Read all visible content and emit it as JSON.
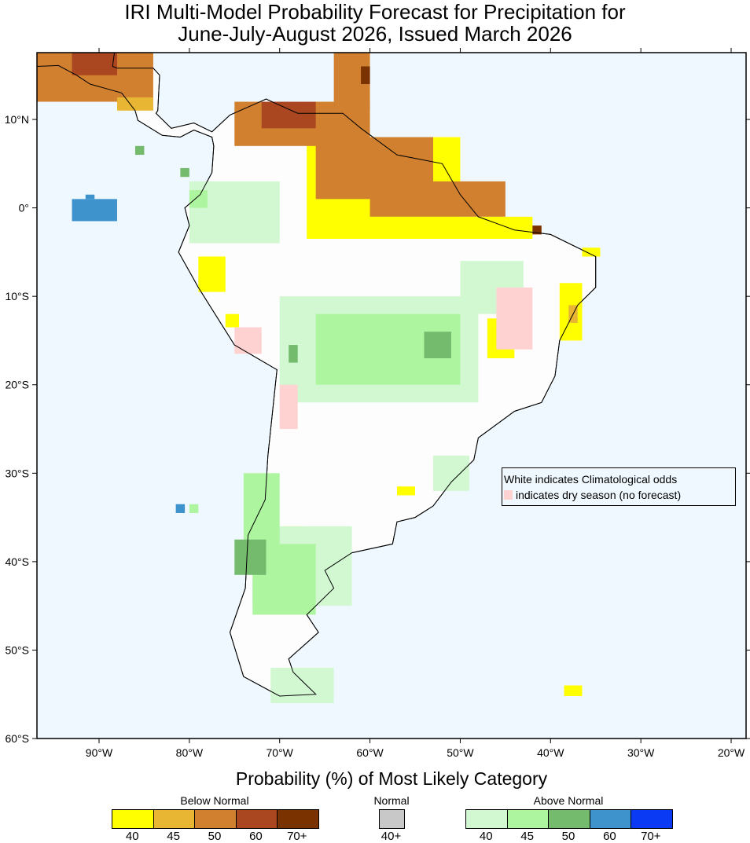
{
  "title_line1": "IRI Multi-Model Probability Forecast for Precipitation for",
  "title_line2": "June-July-August 2026, Issued March 2026",
  "subtitle": "Probability (%) of Most Likely Category",
  "note": {
    "line1": "White indicates Climatological odds",
    "line2": "indicates dry season (no forecast)"
  },
  "axes": {
    "lon_labels": [
      {
        "lon": -90,
        "text": "90°W"
      },
      {
        "lon": -80,
        "text": "80°W"
      },
      {
        "lon": -70,
        "text": "70°W"
      },
      {
        "lon": -60,
        "text": "60°W"
      },
      {
        "lon": -50,
        "text": "50°W"
      },
      {
        "lon": -40,
        "text": "40°W"
      },
      {
        "lon": -30,
        "text": "30°W"
      },
      {
        "lon": -20,
        "text": "20°W"
      }
    ],
    "lat_labels": [
      {
        "lat": 10,
        "text": "10°N"
      },
      {
        "lat": 0,
        "text": "0°"
      },
      {
        "lat": -10,
        "text": "10°S"
      },
      {
        "lat": -20,
        "text": "20°S"
      },
      {
        "lat": -30,
        "text": "30°S"
      },
      {
        "lat": -40,
        "text": "40°S"
      },
      {
        "lat": -50,
        "text": "50°S"
      },
      {
        "lat": -60,
        "text": "60°S"
      }
    ],
    "lon_range": [
      -97,
      -18.4
    ],
    "lat_range": [
      -60,
      17.5
    ]
  },
  "legend": {
    "below": {
      "label": "Below Normal",
      "ticks": [
        "40",
        "45",
        "50",
        "60",
        "70+"
      ],
      "colors": [
        "#ffff00",
        "#e8b632",
        "#d0802f",
        "#ab4720",
        "#7a3300"
      ]
    },
    "normal": {
      "label": "Normal",
      "ticks": [
        "40+"
      ],
      "colors": [
        "#c8c8c8"
      ]
    },
    "above": {
      "label": "Above Normal",
      "ticks": [
        "40",
        "45",
        "50",
        "60",
        "70+"
      ],
      "colors": [
        "#d2f8d2",
        "#aef5a0",
        "#74bb6e",
        "#3e93cc",
        "#0b3af5"
      ]
    },
    "dry": "#ffd2d2",
    "ocean": "#f0f8ff"
  },
  "regions": [
    {
      "lon": [
        -97,
        -84
      ],
      "lat": [
        12,
        17.5
      ],
      "cat": "below",
      "level": 2
    },
    {
      "lon": [
        -93,
        -88
      ],
      "lat": [
        15,
        17.5
      ],
      "cat": "below",
      "level": 3
    },
    {
      "lon": [
        -88,
        -84
      ],
      "lat": [
        11,
        12.5
      ],
      "cat": "below",
      "level": 1
    },
    {
      "lon": [
        -64,
        -60
      ],
      "lat": [
        11,
        17.5
      ],
      "cat": "below",
      "level": 2
    },
    {
      "lon": [
        -61,
        -60
      ],
      "lat": [
        14,
        16
      ],
      "cat": "below",
      "level": 4
    },
    {
      "lon": [
        -67,
        -50
      ],
      "lat": [
        -3.5,
        8
      ],
      "cat": "below",
      "level": 0
    },
    {
      "lon": [
        -75,
        -60
      ],
      "lat": [
        7,
        12
      ],
      "cat": "below",
      "level": 2
    },
    {
      "lon": [
        -72,
        -66
      ],
      "lat": [
        9,
        12
      ],
      "cat": "below",
      "level": 3
    },
    {
      "lon": [
        -66,
        -53
      ],
      "lat": [
        1,
        8
      ],
      "cat": "below",
      "level": 2
    },
    {
      "lon": [
        -60,
        -45
      ],
      "lat": [
        -1,
        3
      ],
      "cat": "below",
      "level": 2
    },
    {
      "lon": [
        -62,
        -42
      ],
      "lat": [
        -3.5,
        -1
      ],
      "cat": "below",
      "level": 0
    },
    {
      "lon": [
        -42,
        -41
      ],
      "lat": [
        -3,
        -2
      ],
      "cat": "below",
      "level": 4
    },
    {
      "lon": [
        -79,
        -76
      ],
      "lat": [
        -9.5,
        -5.5
      ],
      "cat": "below",
      "level": 0
    },
    {
      "lon": [
        -76,
        -74.5
      ],
      "lat": [
        -13.5,
        -12
      ],
      "cat": "below",
      "level": 0
    },
    {
      "lon": [
        -39,
        -36.5
      ],
      "lat": [
        -15,
        -8.5
      ],
      "cat": "below",
      "level": 0
    },
    {
      "lon": [
        -38,
        -37
      ],
      "lat": [
        -13,
        -11
      ],
      "cat": "below",
      "level": 1
    },
    {
      "lon": [
        -47,
        -44
      ],
      "lat": [
        -17,
        -12.5
      ],
      "cat": "below",
      "level": 0
    },
    {
      "lon": [
        -46,
        -45
      ],
      "lat": [
        -16,
        -13
      ],
      "cat": "below",
      "level": 1
    },
    {
      "lon": [
        -36.5,
        -34.5
      ],
      "lat": [
        -5.5,
        -4.5
      ],
      "cat": "below",
      "level": 0
    },
    {
      "lon": [
        -69.5,
        -67.5
      ],
      "lat": [
        -38,
        -36
      ],
      "cat": "below",
      "level": 0
    },
    {
      "lon": [
        -57,
        -55
      ],
      "lat": [
        -32.5,
        -31.5
      ],
      "cat": "below",
      "level": 0
    },
    {
      "lon": [
        -38.5,
        -36.5
      ],
      "lat": [
        -55.2,
        -54
      ],
      "cat": "below",
      "level": 0
    },
    {
      "lon": [
        -80,
        -70
      ],
      "lat": [
        -4,
        3
      ],
      "cat": "above",
      "level": 0
    },
    {
      "lon": [
        -80,
        -78
      ],
      "lat": [
        0,
        2
      ],
      "cat": "above",
      "level": 1
    },
    {
      "lon": [
        -70,
        -48
      ],
      "lat": [
        -22,
        -10
      ],
      "cat": "above",
      "level": 0
    },
    {
      "lon": [
        -66,
        -50
      ],
      "lat": [
        -20,
        -12
      ],
      "cat": "above",
      "level": 1
    },
    {
      "lon": [
        -54,
        -51
      ],
      "lat": [
        -17,
        -14
      ],
      "cat": "above",
      "level": 2
    },
    {
      "lon": [
        -69,
        -68
      ],
      "lat": [
        -17.5,
        -15.5
      ],
      "cat": "above",
      "level": 2
    },
    {
      "lon": [
        -50,
        -43
      ],
      "lat": [
        -12,
        -6
      ],
      "cat": "above",
      "level": 0
    },
    {
      "lon": [
        -73,
        -62
      ],
      "lat": [
        -45,
        -36
      ],
      "cat": "above",
      "level": 0
    },
    {
      "lon": [
        -73,
        -66
      ],
      "lat": [
        -46,
        -38
      ],
      "cat": "above",
      "level": 1
    },
    {
      "lon": [
        -74,
        -70
      ],
      "lat": [
        -38,
        -30
      ],
      "cat": "above",
      "level": 1
    },
    {
      "lon": [
        -75,
        -71.5
      ],
      "lat": [
        -41.5,
        -37.5
      ],
      "cat": "above",
      "level": 2
    },
    {
      "lon": [
        -71,
        -64
      ],
      "lat": [
        -56,
        -52
      ],
      "cat": "above",
      "level": 0
    },
    {
      "lon": [
        -53,
        -49
      ],
      "lat": [
        -32,
        -28
      ],
      "cat": "above",
      "level": 0
    },
    {
      "lon": [
        -93,
        -88
      ],
      "lat": [
        -1.5,
        1
      ],
      "cat": "above",
      "level": 3
    },
    {
      "lon": [
        -91.5,
        -90.5
      ],
      "lat": [
        1,
        1.5
      ],
      "cat": "above",
      "level": 3
    },
    {
      "lon": [
        -81.5,
        -80.5
      ],
      "lat": [
        -34.5,
        -33.5
      ],
      "cat": "above",
      "level": 3
    },
    {
      "lon": [
        -80,
        -79
      ],
      "lat": [
        -34.5,
        -33.5
      ],
      "cat": "above",
      "level": 1
    },
    {
      "lon": [
        -86,
        -85
      ],
      "lat": [
        6,
        7
      ],
      "cat": "above",
      "level": 2
    },
    {
      "lon": [
        -81,
        -80
      ],
      "lat": [
        3.5,
        4.5
      ],
      "cat": "above",
      "level": 2
    },
    {
      "lon": [
        -46,
        -42
      ],
      "lat": [
        -16,
        -9
      ],
      "cat": "dry"
    },
    {
      "lon": [
        -75,
        -72
      ],
      "lat": [
        -16.5,
        -13.5
      ],
      "cat": "dry"
    },
    {
      "lon": [
        -70,
        -68
      ],
      "lat": [
        -25,
        -20
      ],
      "cat": "dry"
    }
  ]
}
